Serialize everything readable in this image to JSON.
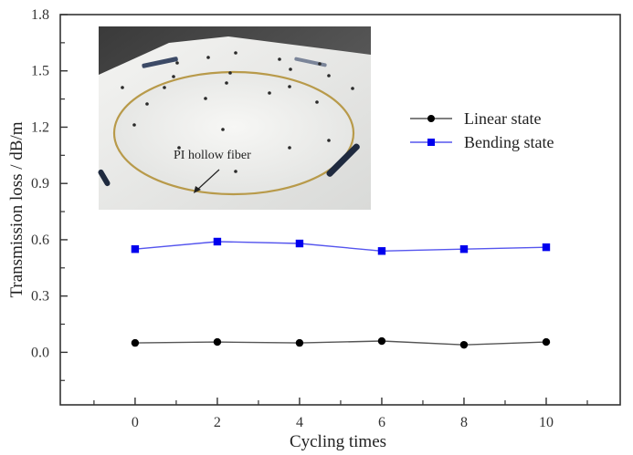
{
  "chart_data": {
    "type": "line",
    "title": "",
    "xlabel": "Cycling times",
    "ylabel": "Transmission loss / dB/m",
    "x": [
      0,
      2,
      4,
      6,
      8,
      10
    ],
    "xticks": [
      0,
      2,
      4,
      6,
      8,
      10
    ],
    "xtick_labels": [
      "0",
      "2",
      "4",
      "6",
      "8",
      "10"
    ],
    "xminor_ticks": [
      -1,
      1,
      3,
      5,
      7,
      9,
      11
    ],
    "xlim": [
      -1.82,
      11.8
    ],
    "yticks": [
      0.0,
      0.3,
      0.6,
      0.9,
      1.2,
      1.5,
      1.8
    ],
    "ytick_labels": [
      "0.0",
      "0.3",
      "0.6",
      "0.9",
      "1.2",
      "1.5",
      "1.8"
    ],
    "yminor_ticks": [
      -0.15,
      0.15,
      0.45,
      0.75,
      1.05,
      1.35,
      1.65
    ],
    "ylim": [
      -0.28,
      1.8
    ],
    "grid": false,
    "legend_position": "right",
    "series": [
      {
        "name": "Linear state",
        "values": [
          0.05,
          0.055,
          0.05,
          0.06,
          0.04,
          0.055
        ],
        "color": "#000000",
        "line_color": "#555555",
        "marker": "circle"
      },
      {
        "name": "Bending state",
        "values": [
          0.55,
          0.59,
          0.58,
          0.54,
          0.55,
          0.56
        ],
        "color": "#0000ee",
        "line_color": "#5555ee",
        "marker": "square"
      }
    ],
    "annotations": [
      {
        "type": "inset-photo",
        "label": "PI hollow fiber",
        "location": "top-left"
      }
    ]
  }
}
